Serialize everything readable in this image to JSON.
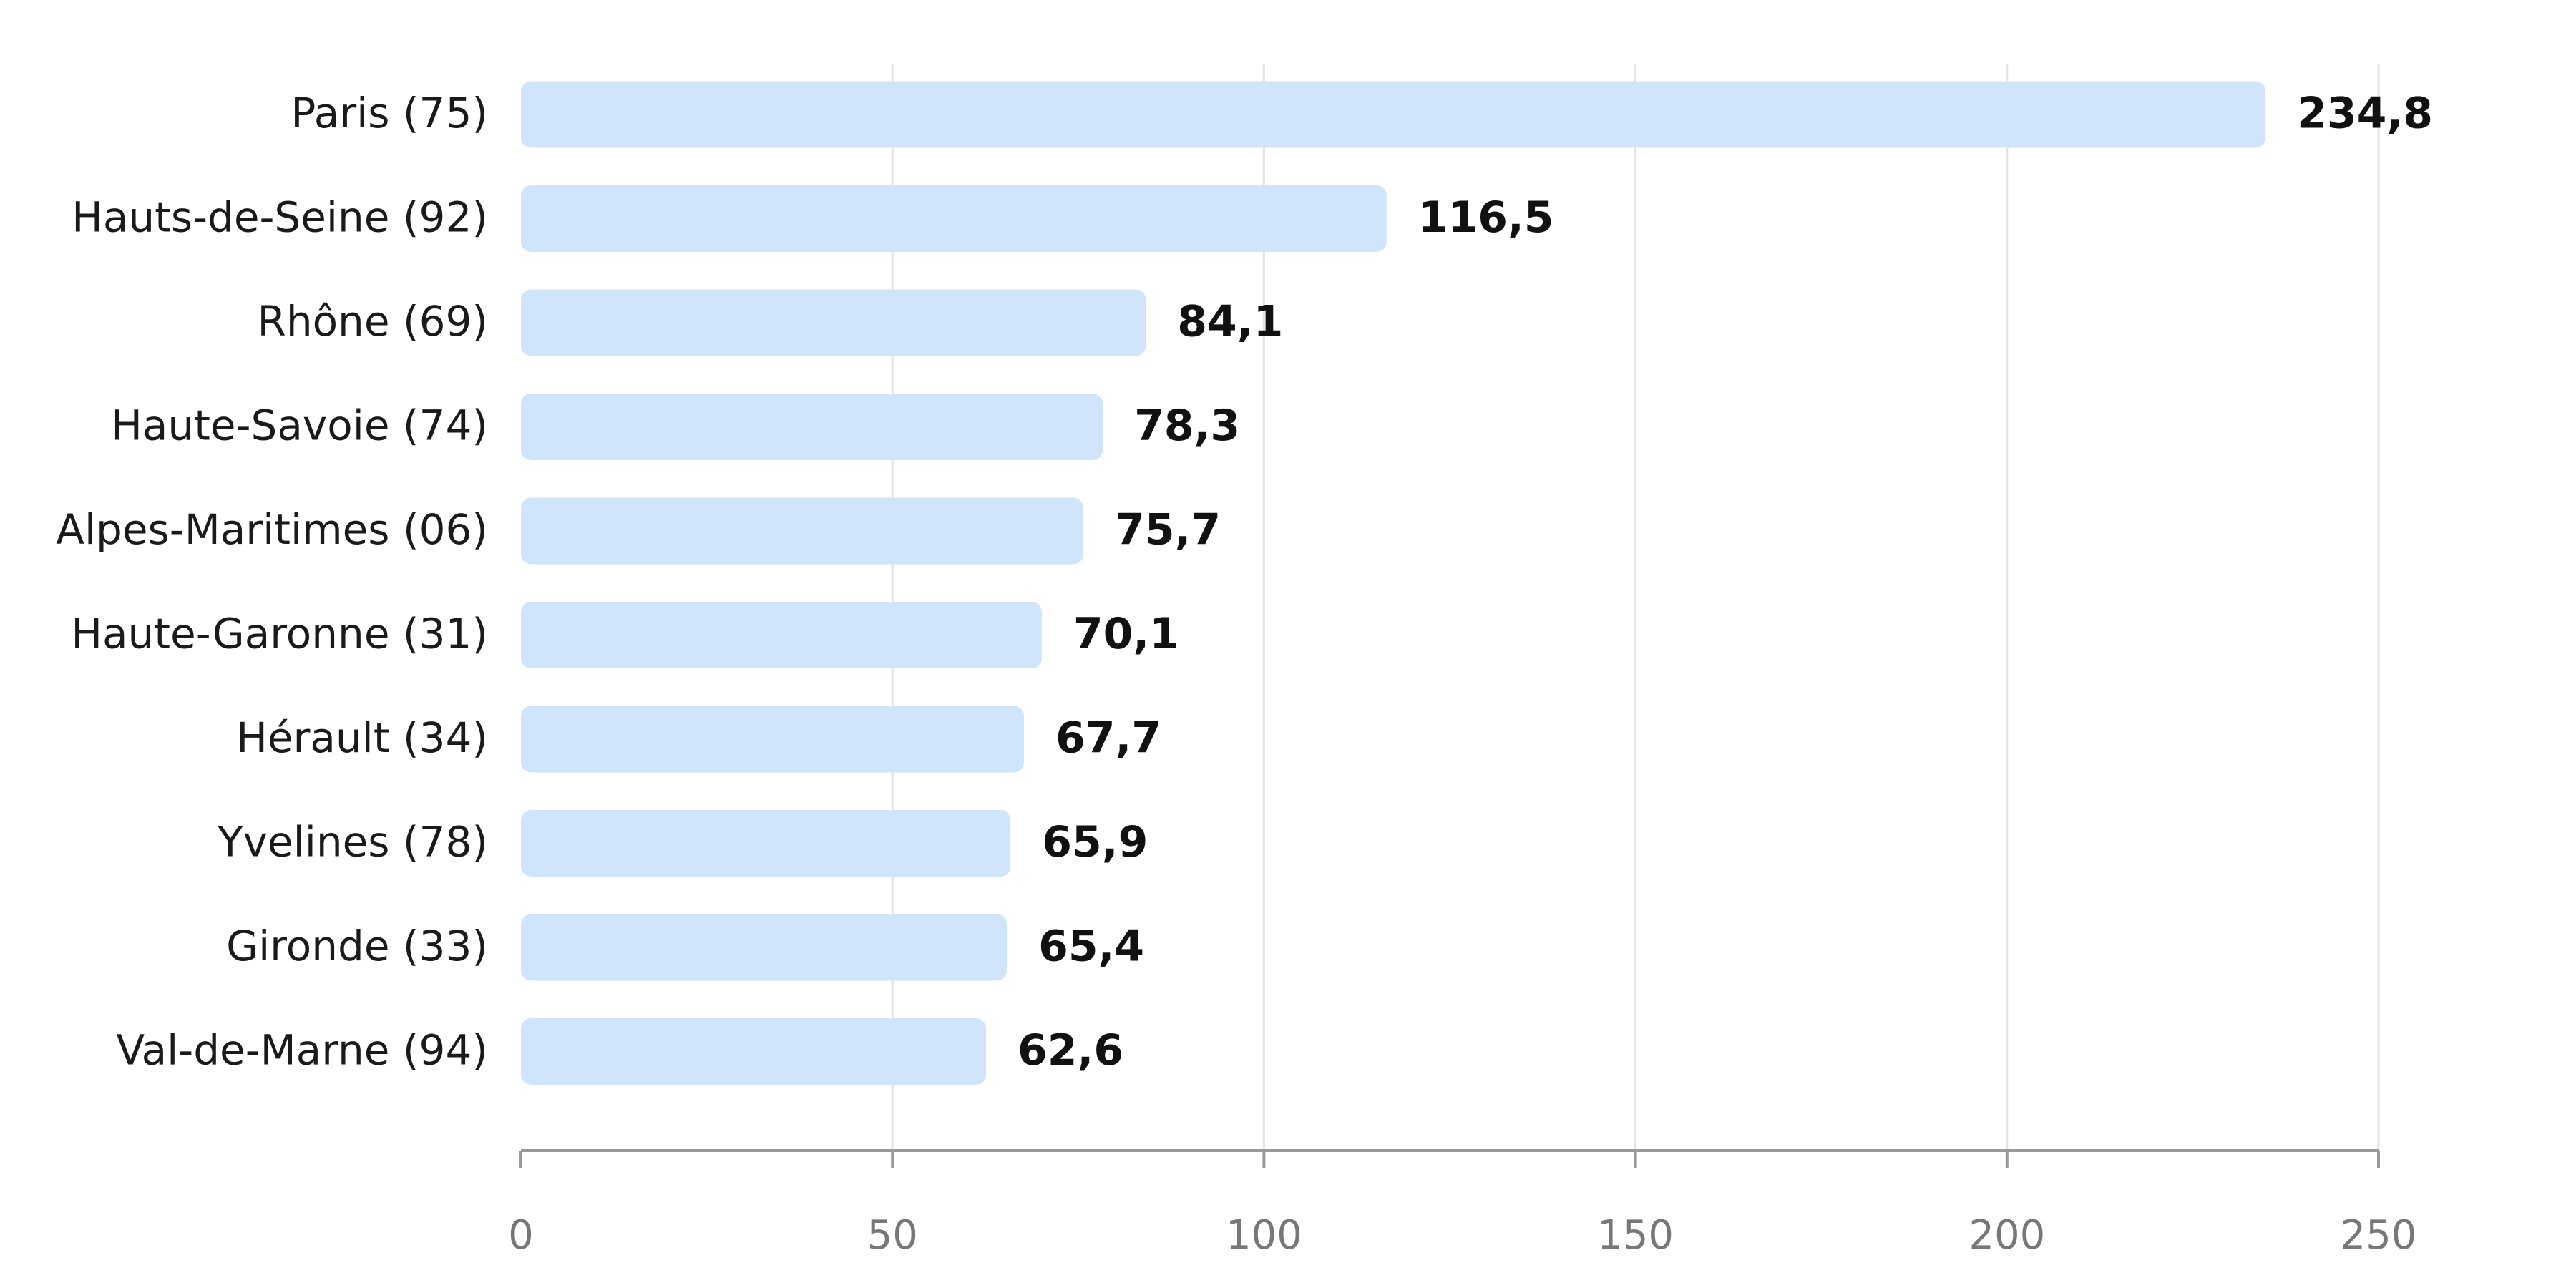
{
  "chart_data": {
    "type": "bar",
    "orientation": "horizontal",
    "categories": [
      "Paris (75)",
      "Hauts-de-Seine (92)",
      "Rhône (69)",
      "Haute-Savoie (74)",
      "Alpes-Maritimes (06)",
      "Haute-Garonne (31)",
      "Hérault (34)",
      "Yvelines (78)",
      "Gironde (33)",
      "Val-de-Marne (94)"
    ],
    "values": [
      234.8,
      116.5,
      84.1,
      78.3,
      75.7,
      70.1,
      67.7,
      65.9,
      65.4,
      62.6
    ],
    "value_labels": [
      "234,8",
      "116,5",
      "84,1",
      "78,3",
      "75,7",
      "70,1",
      "67,7",
      "65,9",
      "65,4",
      "62,6"
    ],
    "color": "#d0e5fb",
    "xlim": [
      0,
      250
    ],
    "xticks": [
      0,
      50,
      100,
      150,
      200,
      250
    ],
    "grid": true
  }
}
